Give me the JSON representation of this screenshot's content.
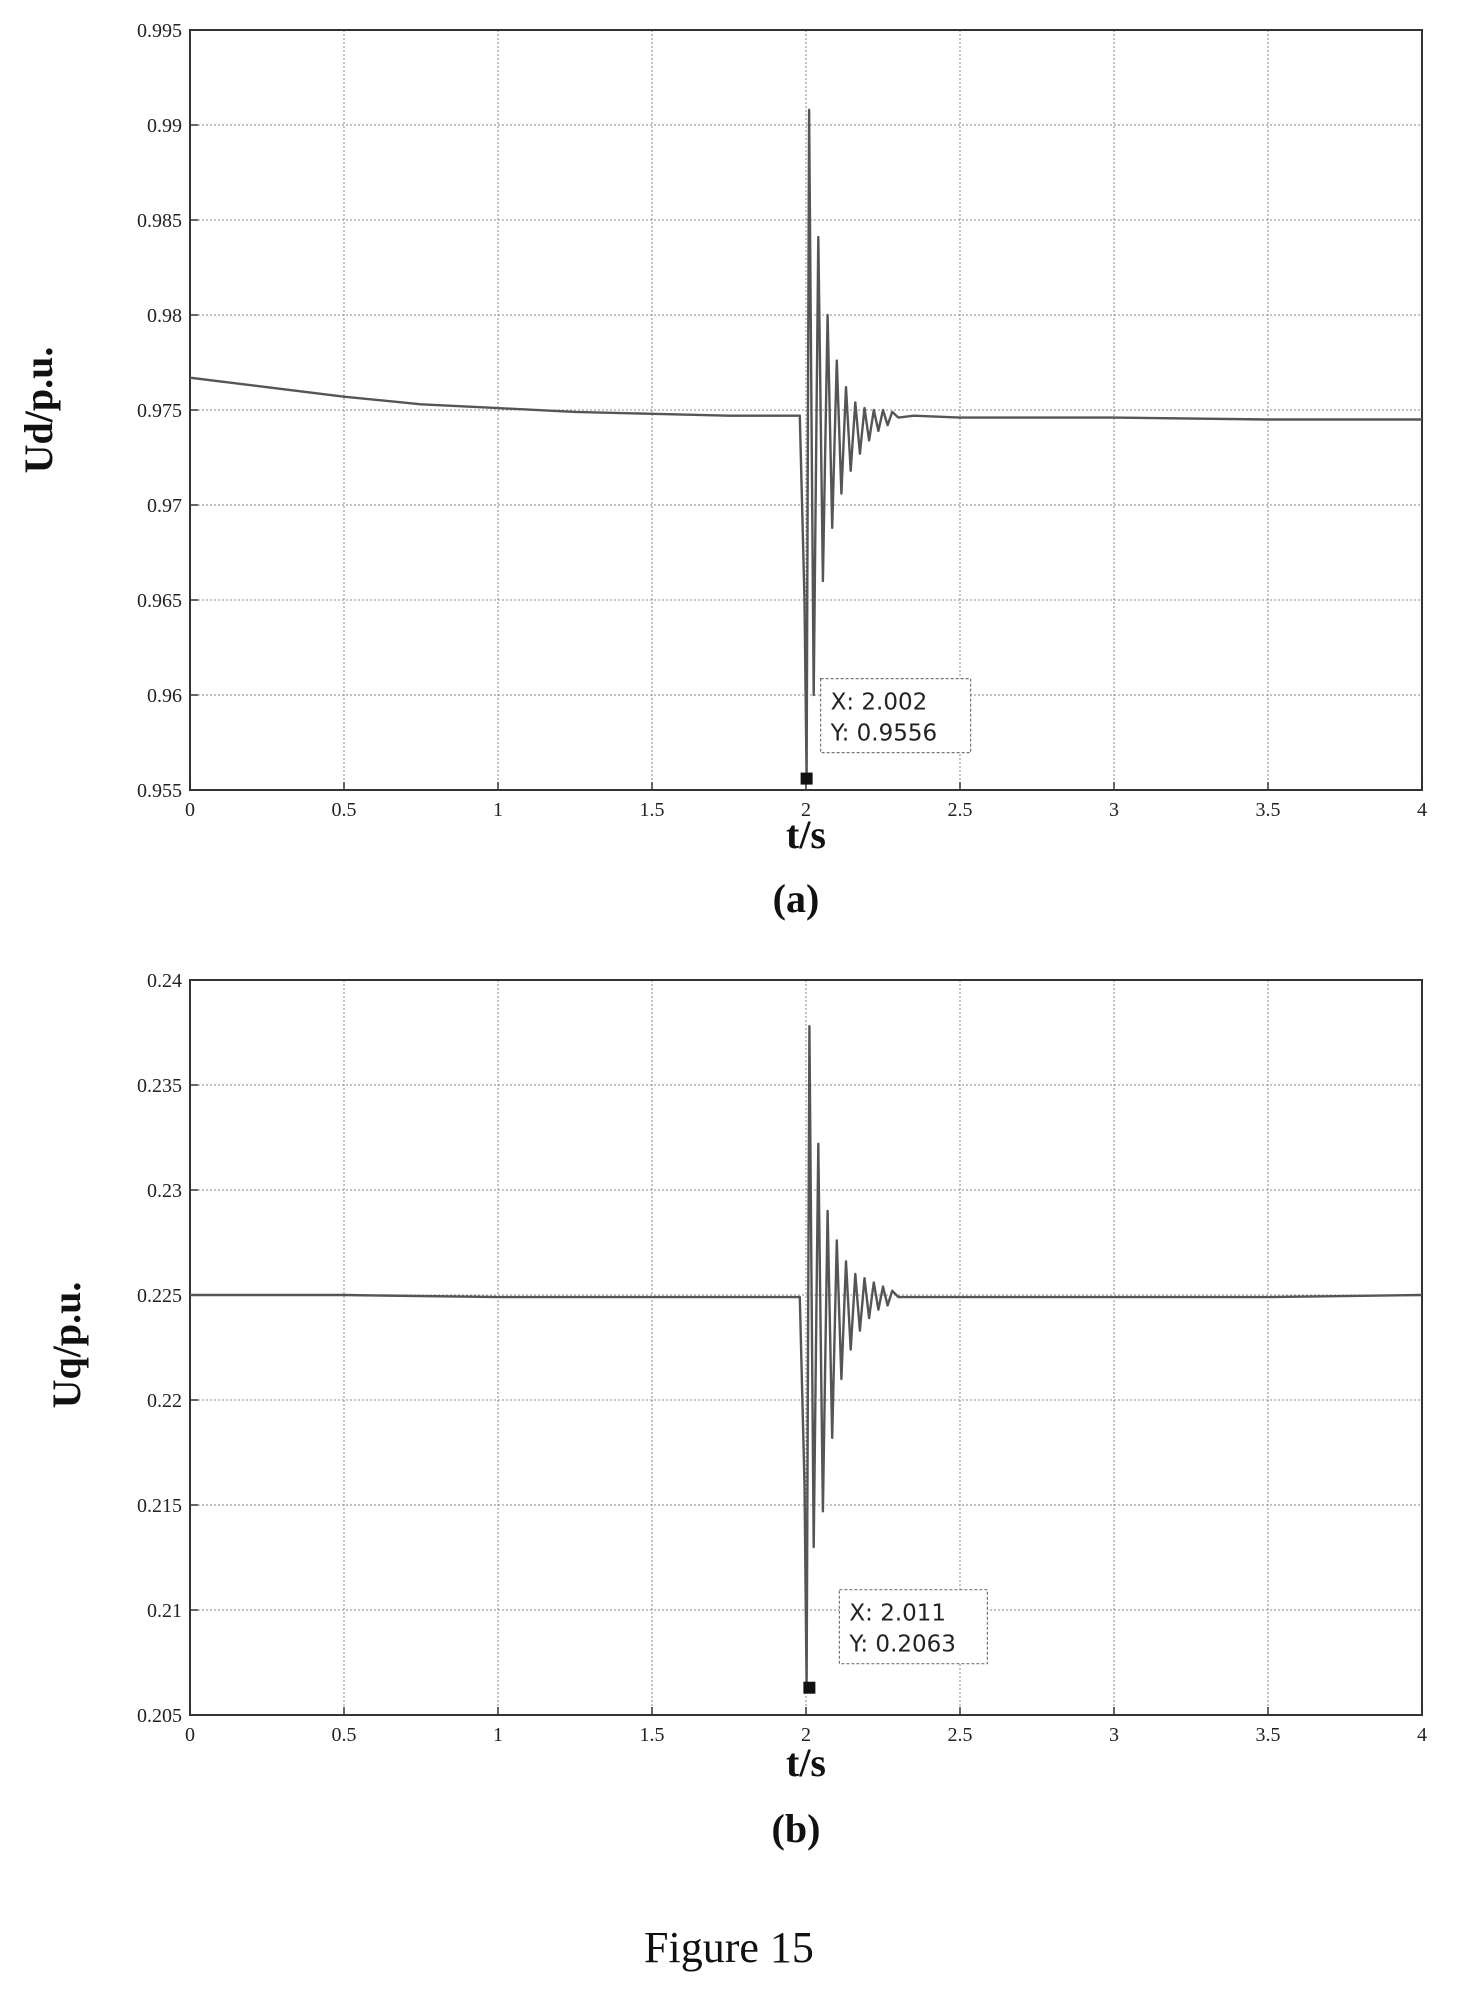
{
  "figure_caption": "Figure 15",
  "chart_data": [
    {
      "type": "line",
      "panel_label": "(a)",
      "xlabel": "t/s",
      "ylabel": "Ud/p.u.",
      "xlim": [
        0,
        4
      ],
      "ylim": [
        0.955,
        0.995
      ],
      "x_ticks": [
        0,
        0.5,
        1,
        1.5,
        2,
        2.5,
        3,
        3.5,
        4
      ],
      "x_tick_labels": [
        "0",
        "0.5",
        "1",
        "1.5",
        "2",
        "2.5",
        "3",
        "3.5",
        "4"
      ],
      "y_ticks": [
        0.955,
        0.96,
        0.965,
        0.97,
        0.975,
        0.98,
        0.985,
        0.99,
        0.995
      ],
      "y_tick_labels": [
        "0.955",
        "0.96",
        "0.965",
        "0.97",
        "0.975",
        "0.98",
        "0.985",
        "0.99",
        "0.995"
      ],
      "grid": true,
      "series": [
        {
          "x": [
            0,
            0.25,
            0.5,
            0.75,
            1.0,
            1.25,
            1.5,
            1.75,
            1.98,
            1.995,
            2.002,
            2.01,
            2.025,
            2.04,
            2.055,
            2.07,
            2.085,
            2.1,
            2.115,
            2.13,
            2.145,
            2.16,
            2.175,
            2.19,
            2.205,
            2.22,
            2.235,
            2.25,
            2.265,
            2.28,
            2.3,
            2.35,
            2.5,
            3.0,
            3.5,
            4.0
          ],
          "y": [
            0.9767,
            0.9762,
            0.9757,
            0.9753,
            0.9751,
            0.9749,
            0.9748,
            0.9747,
            0.9747,
            0.965,
            0.9556,
            0.9908,
            0.96,
            0.9841,
            0.966,
            0.98,
            0.9688,
            0.9776,
            0.9706,
            0.9762,
            0.9718,
            0.9754,
            0.9727,
            0.9751,
            0.9734,
            0.975,
            0.9739,
            0.975,
            0.9742,
            0.9749,
            0.9746,
            0.9747,
            0.9746,
            0.9746,
            0.9745,
            0.9745
          ]
        }
      ],
      "annotation": {
        "x_label": "X: 2.002",
        "y_label": "Y: 0.9556",
        "x": 2.002,
        "y": 0.9556
      }
    },
    {
      "type": "line",
      "panel_label": "(b)",
      "xlabel": "t/s",
      "ylabel": "Uq/p.u.",
      "xlim": [
        0,
        4
      ],
      "ylim": [
        0.205,
        0.24
      ],
      "x_ticks": [
        0,
        0.5,
        1,
        1.5,
        2,
        2.5,
        3,
        3.5,
        4
      ],
      "x_tick_labels": [
        "0",
        "0.5",
        "1",
        "1.5",
        "2",
        "2.5",
        "3",
        "3.5",
        "4"
      ],
      "y_ticks": [
        0.205,
        0.21,
        0.215,
        0.22,
        0.225,
        0.23,
        0.235,
        0.24
      ],
      "y_tick_labels": [
        "0.205",
        "0.21",
        "0.215",
        "0.22",
        "0.225",
        "0.23",
        "0.235",
        "0.24"
      ],
      "grid": true,
      "series": [
        {
          "x": [
            0,
            0.5,
            1.0,
            1.5,
            1.98,
            1.995,
            2.002,
            2.011,
            2.025,
            2.04,
            2.055,
            2.07,
            2.085,
            2.1,
            2.115,
            2.13,
            2.145,
            2.16,
            2.175,
            2.19,
            2.205,
            2.22,
            2.235,
            2.25,
            2.265,
            2.28,
            2.3,
            2.35,
            2.5,
            3.0,
            3.5,
            4.0
          ],
          "y": [
            0.225,
            0.225,
            0.2249,
            0.2249,
            0.2249,
            0.216,
            0.2063,
            0.2378,
            0.213,
            0.2322,
            0.2147,
            0.229,
            0.2182,
            0.2276,
            0.221,
            0.2266,
            0.2224,
            0.226,
            0.2233,
            0.2258,
            0.2239,
            0.2256,
            0.2243,
            0.2254,
            0.2245,
            0.2252,
            0.2249,
            0.2249,
            0.2249,
            0.2249,
            0.2249,
            0.225
          ]
        }
      ],
      "annotation": {
        "x_label": "X: 2.011",
        "y_label": "Y: 0.2063",
        "x": 2.011,
        "y": 0.2063
      }
    }
  ]
}
